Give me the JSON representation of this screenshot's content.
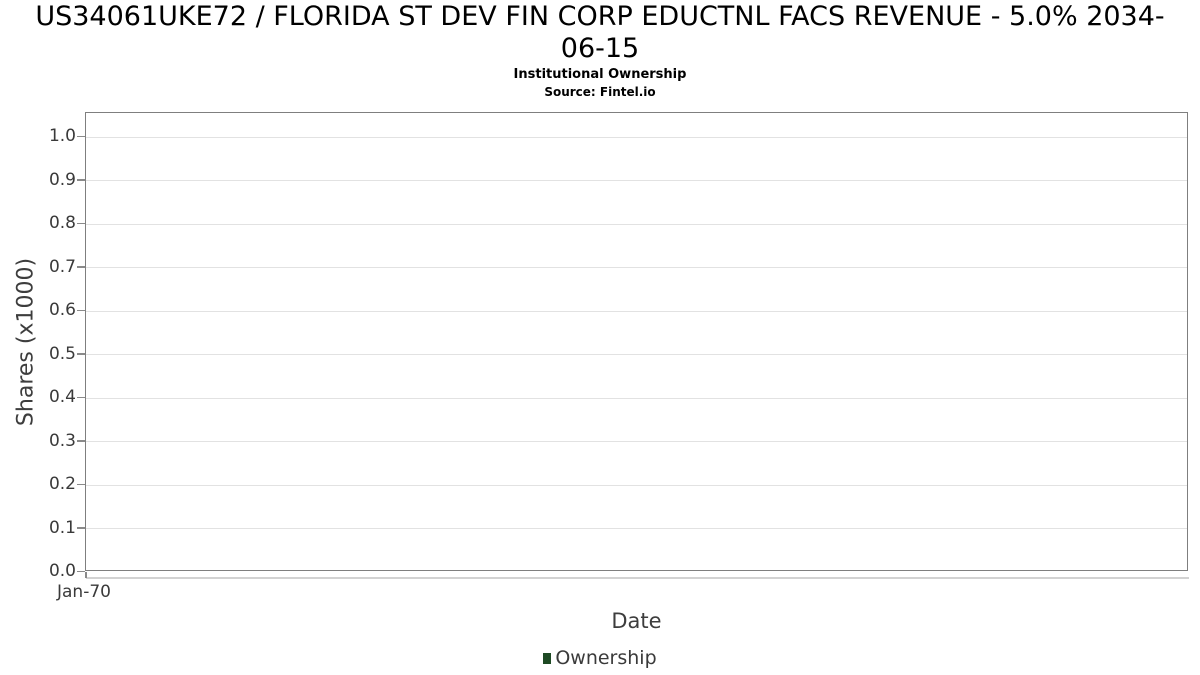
{
  "header": {
    "title": "US34061UKE72 / FLORIDA ST DEV FIN CORP EDUCTNL FACS REVENUE - 5.0% 2034-06-15",
    "title_lines": [
      "US34061UKE72 / FLORIDA ST DEV FIN CORP EDUCTNL FACS REVENUE - 5.0% 2034-",
      "06-15"
    ],
    "subtitle": "Institutional Ownership",
    "source": "Source: Fintel.io"
  },
  "axes": {
    "y_label": "Shares (x1000)",
    "x_label": "Date",
    "y_tick_labels": [
      "1.0",
      "0.9",
      "0.8",
      "0.7",
      "0.6",
      "0.5",
      "0.4",
      "0.3",
      "0.2",
      "0.1",
      "0.0"
    ],
    "x_tick_labels": [
      "Jan-70"
    ]
  },
  "legend": {
    "items": [
      {
        "label": "Ownership",
        "color": "#1e4a24",
        "marker": "square"
      }
    ]
  },
  "chart_data": {
    "type": "line",
    "title": "US34061UKE72 / FLORIDA ST DEV FIN CORP EDUCTNL FACS REVENUE - 5.0% 2034-06-15",
    "subtitle": "Institutional Ownership",
    "source": "Source: Fintel.io",
    "xlabel": "Date",
    "ylabel": "Shares (x1000)",
    "x_tick_labels": [
      "Jan-70"
    ],
    "y_ticks": [
      0.0,
      0.1,
      0.2,
      0.3,
      0.4,
      0.5,
      0.6,
      0.7,
      0.8,
      0.9,
      1.0
    ],
    "ylim": [
      0.0,
      1.05
    ],
    "grid": "horizontal-only",
    "legend_position": "bottom-center",
    "series": [
      {
        "name": "Ownership",
        "color": "#1e4a24",
        "x": [],
        "values": []
      }
    ]
  },
  "colors": {
    "background": "#ffffff",
    "title_text": "#000000",
    "axis_text": "#3a3a3a",
    "plot_border": "#7f7f7f",
    "gridline": "#e2e2e2",
    "tick_mark": "#8a8a8a",
    "legend_marker": "#1e4a24"
  }
}
